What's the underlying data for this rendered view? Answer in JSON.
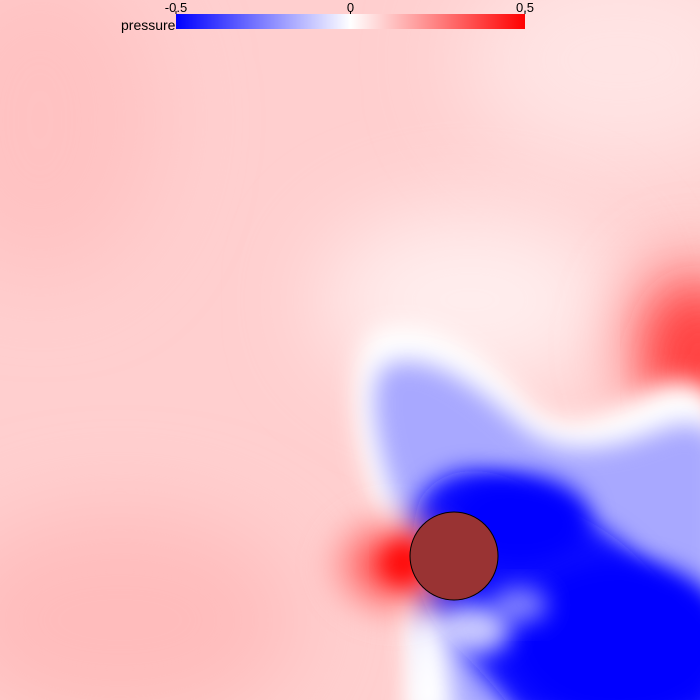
{
  "chart_data": {
    "type": "heatmap",
    "title": "",
    "colorbar": {
      "label": "pressure",
      "min": -0.5,
      "max": 0.5,
      "ticks": [
        {
          "value": -0.5,
          "label": "-0.5"
        },
        {
          "value": 0,
          "label": "0"
        },
        {
          "value": 0.5,
          "label": "0.5"
        }
      ],
      "colors": {
        "low": "#0000ff",
        "mid": "#ffffff",
        "high": "#ff0000"
      }
    },
    "field_description": "2D pressure field around a circular obstacle; high pressure on the left face, low-pressure region trailing to the right and lower-right, positive region at upper-right",
    "obstacle": {
      "shape": "circle",
      "fill": "#993333",
      "stroke": "#000000"
    }
  }
}
